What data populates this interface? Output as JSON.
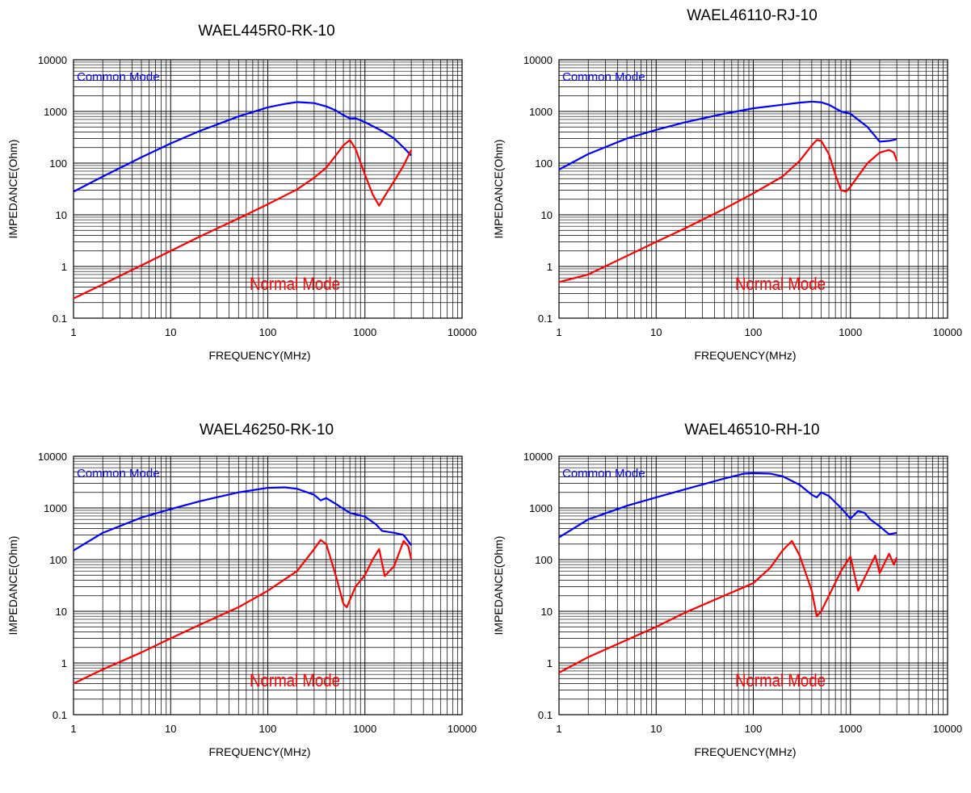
{
  "chart_data": [
    {
      "type": "line",
      "title": "WAEL445R0-RK-10",
      "xlabel": "FREQUENCY(MHz)",
      "ylabel": "IMPEDANCE(Ohm)",
      "xscale": "log",
      "yscale": "log",
      "xlim": [
        1,
        10000
      ],
      "ylim": [
        0.1,
        10000
      ],
      "xticks": [
        "1",
        "10",
        "100",
        "1000",
        "10000"
      ],
      "yticks": [
        "0.1",
        "1",
        "10",
        "100",
        "1000",
        "10000"
      ],
      "grid": true,
      "series": [
        {
          "name": "Common Mode",
          "color": "#0000ff",
          "x": [
            1,
            2,
            5,
            10,
            20,
            50,
            100,
            150,
            200,
            300,
            400,
            500,
            600,
            700,
            800,
            1000,
            1500,
            2000,
            2500,
            3000
          ],
          "y": [
            28,
            55,
            130,
            240,
            420,
            800,
            1200,
            1400,
            1520,
            1450,
            1250,
            1050,
            850,
            730,
            740,
            620,
            420,
            300,
            200,
            140
          ]
        },
        {
          "name": "Normal Mode",
          "color": "#ff0000",
          "x": [
            1,
            2,
            5,
            10,
            20,
            50,
            100,
            200,
            300,
            400,
            500,
            600,
            700,
            800,
            1000,
            1200,
            1400,
            1600,
            2000,
            2500,
            3000
          ],
          "y": [
            0.24,
            0.45,
            1.05,
            2.0,
            3.8,
            8.5,
            16,
            31,
            52,
            82,
            140,
            220,
            280,
            190,
            60,
            25,
            15,
            23,
            45,
            90,
            180
          ]
        }
      ]
    },
    {
      "type": "line",
      "title": "WAEL46110-RJ-10",
      "xlabel": "FREQUENCY(MHz)",
      "ylabel": "IMPEDANCE(Ohm)",
      "xscale": "log",
      "yscale": "log",
      "xlim": [
        1,
        10000
      ],
      "ylim": [
        0.1,
        10000
      ],
      "xticks": [
        "1",
        "10",
        "100",
        "1000",
        "10000"
      ],
      "yticks": [
        "0.1",
        "1",
        "10",
        "100",
        "1000",
        "10000"
      ],
      "grid": true,
      "series": [
        {
          "name": "Common Mode",
          "color": "#0000ff",
          "x": [
            1,
            2,
            5,
            10,
            20,
            50,
            100,
            200,
            300,
            400,
            500,
            600,
            700,
            800,
            900,
            1000,
            1500,
            2000,
            2500,
            3000
          ],
          "y": [
            75,
            150,
            300,
            440,
            620,
            900,
            1150,
            1350,
            1480,
            1550,
            1500,
            1350,
            1150,
            1000,
            950,
            900,
            500,
            260,
            270,
            290
          ]
        },
        {
          "name": "Normal Mode",
          "color": "#ff0000",
          "x": [
            1,
            2,
            5,
            10,
            20,
            50,
            100,
            200,
            300,
            400,
            450,
            500,
            600,
            700,
            800,
            900,
            1000,
            1500,
            2000,
            2500,
            2800,
            3000
          ],
          "y": [
            0.5,
            0.7,
            1.6,
            3.0,
            5.5,
            13,
            26,
            55,
            110,
            220,
            280,
            270,
            150,
            60,
            30,
            28,
            35,
            100,
            160,
            180,
            160,
            110
          ]
        }
      ]
    },
    {
      "type": "line",
      "title": "WAEL46250-RK-10",
      "xlabel": "FREQUENCY(MHz)",
      "ylabel": "IMPEDANCE(Ohm)",
      "xscale": "log",
      "yscale": "log",
      "xlim": [
        1,
        10000
      ],
      "ylim": [
        0.1,
        10000
      ],
      "xticks": [
        "1",
        "10",
        "100",
        "1000",
        "10000"
      ],
      "yticks": [
        "0.1",
        "1",
        "10",
        "100",
        "1000",
        "10000"
      ],
      "grid": true,
      "series": [
        {
          "name": "Common Mode",
          "color": "#0000ff",
          "x": [
            1,
            2,
            5,
            10,
            20,
            50,
            100,
            150,
            200,
            300,
            350,
            400,
            500,
            700,
            1000,
            1300,
            1500,
            2000,
            2500,
            3000
          ],
          "y": [
            150,
            330,
            650,
            950,
            1350,
            2000,
            2450,
            2500,
            2350,
            1800,
            1400,
            1550,
            1200,
            800,
            680,
            480,
            360,
            330,
            300,
            190
          ]
        },
        {
          "name": "Normal Mode",
          "color": "#ff0000",
          "x": [
            1,
            2,
            5,
            10,
            20,
            50,
            100,
            200,
            300,
            350,
            400,
            500,
            600,
            650,
            800,
            1000,
            1200,
            1400,
            1600,
            2000,
            2500,
            2800,
            3000
          ],
          "y": [
            0.4,
            0.75,
            1.6,
            3.0,
            5.5,
            12,
            25,
            60,
            160,
            240,
            200,
            50,
            14,
            12,
            30,
            50,
            100,
            160,
            48,
            75,
            230,
            180,
            100
          ]
        }
      ]
    },
    {
      "type": "line",
      "title": "WAEL46510-RH-10",
      "xlabel": "FREQUENCY(MHz)",
      "ylabel": "IMPEDANCE(Ohm)",
      "xscale": "log",
      "yscale": "log",
      "xlim": [
        1,
        10000
      ],
      "ylim": [
        0.1,
        10000
      ],
      "xticks": [
        "1",
        "10",
        "100",
        "1000",
        "10000"
      ],
      "yticks": [
        "0.1",
        "1",
        "10",
        "100",
        "1000",
        "10000"
      ],
      "grid": true,
      "series": [
        {
          "name": "Common Mode",
          "color": "#0000ff",
          "x": [
            1,
            2,
            5,
            10,
            20,
            50,
            80,
            100,
            150,
            200,
            300,
            400,
            450,
            500,
            600,
            800,
            1000,
            1200,
            1400,
            1600,
            2000,
            2500,
            3000
          ],
          "y": [
            270,
            600,
            1100,
            1600,
            2300,
            3700,
            4600,
            4700,
            4600,
            4100,
            2800,
            1800,
            1600,
            2000,
            1700,
            1000,
            620,
            870,
            800,
            600,
            440,
            310,
            330
          ]
        },
        {
          "name": "Normal Mode",
          "color": "#ff0000",
          "x": [
            1,
            2,
            5,
            10,
            20,
            50,
            100,
            150,
            200,
            250,
            300,
            400,
            450,
            500,
            600,
            800,
            1000,
            1200,
            1400,
            1800,
            2000,
            2500,
            2800,
            3000
          ],
          "y": [
            0.65,
            1.3,
            2.8,
            5.0,
            9.5,
            20,
            35,
            70,
            150,
            230,
            120,
            25,
            8,
            10,
            20,
            60,
            115,
            25,
            45,
            120,
            55,
            130,
            80,
            110
          ]
        }
      ]
    }
  ]
}
